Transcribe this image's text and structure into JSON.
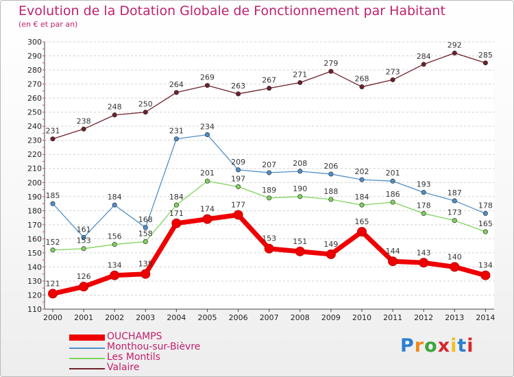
{
  "header": {
    "title": "Evolution de la Dotation Globale de Fonctionnement par Habitant",
    "subtitle": "(en € et par an)"
  },
  "logo": {
    "text": "Proxiti",
    "colors": [
      "#2a7fd0",
      "#f08a1c",
      "#3aa63a",
      "#d8262c",
      "#f0c020",
      "#2a7fd0",
      "#d8262c"
    ]
  },
  "chart_data": {
    "type": "line",
    "x": [
      "2000",
      "2001",
      "2002",
      "2003",
      "2004",
      "2005",
      "2006",
      "2007",
      "2008",
      "2009",
      "2010",
      "2011",
      "2012",
      "2013",
      "2014"
    ],
    "ylim": [
      110,
      300
    ],
    "yticks": [
      110,
      120,
      130,
      140,
      150,
      160,
      170,
      180,
      190,
      200,
      210,
      220,
      230,
      240,
      250,
      260,
      270,
      280,
      290,
      300
    ],
    "grid": "horizontal",
    "legend_position": "bottom-left",
    "series": [
      {
        "name": "Valaire",
        "color": "#6e1f2a",
        "values": [
          231,
          238,
          248,
          250,
          264,
          269,
          263,
          267,
          271,
          279,
          268,
          273,
          284,
          292,
          285
        ]
      },
      {
        "name": "Monthou-sur-Bièvre",
        "color": "#4f8fca",
        "values": [
          185,
          161,
          184,
          168,
          231,
          234,
          209,
          207,
          208,
          206,
          202,
          201,
          193,
          187,
          178
        ]
      },
      {
        "name": "Les Montils",
        "color": "#7ed35a",
        "values": [
          152,
          153,
          156,
          158,
          184,
          201,
          197,
          189,
          190,
          188,
          184,
          186,
          178,
          173,
          165
        ]
      },
      {
        "name": "OUCHAMPS",
        "color": "#ee0000",
        "values": [
          121,
          126,
          134,
          135,
          171,
          174,
          177,
          153,
          151,
          149,
          165,
          144,
          143,
          140,
          134
        ]
      }
    ],
    "legend_order": [
      "OUCHAMPS",
      "Monthou-sur-Bièvre",
      "Les Montils",
      "Valaire"
    ]
  }
}
